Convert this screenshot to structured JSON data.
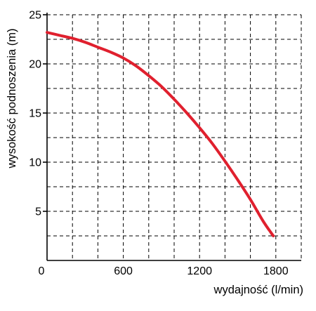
{
  "chart_data": {
    "type": "line",
    "title": "",
    "xlabel": "wydajność (l/min)",
    "ylabel": "wysokość podnoszenia (m)",
    "xlim": [
      0,
      2000
    ],
    "ylim": [
      0,
      25
    ],
    "x_ticks": [
      0,
      600,
      1200,
      1800
    ],
    "x_tick_labels": [
      "0",
      "600",
      "1200",
      "1800"
    ],
    "y_ticks": [
      5,
      10,
      15,
      20,
      25
    ],
    "y_tick_labels": [
      "5",
      "10",
      "15",
      "20",
      "25"
    ],
    "grid": true,
    "series": [
      {
        "color": "#e0202e",
        "x": [
          0,
          100,
          200,
          300,
          400,
          500,
          600,
          700,
          800,
          900,
          1000,
          1100,
          1200,
          1300,
          1400,
          1500,
          1600,
          1700,
          1780
        ],
        "y": [
          23.2,
          22.9,
          22.6,
          22.2,
          21.7,
          21.2,
          20.6,
          19.8,
          18.8,
          17.7,
          16.4,
          15.0,
          13.5,
          11.9,
          10.1,
          8.2,
          6.2,
          4.0,
          2.5
        ]
      }
    ]
  }
}
